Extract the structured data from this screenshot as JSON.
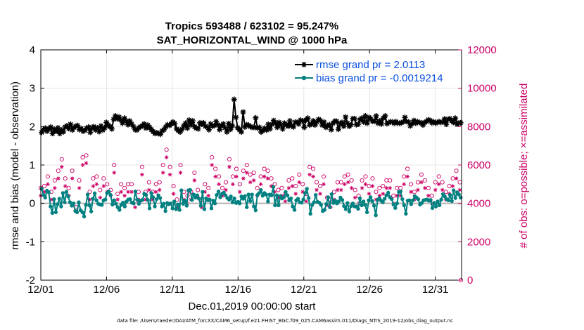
{
  "chart_data": {
    "type": "line",
    "title": "Tropics 593488 / 623102 = 95.247%",
    "subtitle": "SAT_HORIZONTAL_WIND @ 1000 hPa",
    "xlabel": "Dec.01,2019 00:00:00 start",
    "ylabel": "rmse and bias (model - observation)",
    "ylabel_right": "# of obs: o=possible; ×=assimilated",
    "footnote": "data file: /Users/raeder/DAI/ATM_forcXX/CAM6_setup/f.e21.FHIST_BGC.f09_025.CAM6assim.011/Diags_NTrS_2019-12/obs_diag_output.nc",
    "x_ticks": [
      "12/01",
      "12/06",
      "12/11",
      "12/16",
      "12/21",
      "12/26",
      "12/31"
    ],
    "y_ticks": [
      "-2",
      "-1",
      "0",
      "1",
      "2",
      "3",
      "4"
    ],
    "y2_ticks": [
      "0",
      "2000",
      "4000",
      "6000",
      "8000",
      "10000",
      "12000"
    ],
    "ylim": [
      -2,
      4
    ],
    "y2lim": [
      0,
      12000
    ],
    "xlim": [
      0,
      32
    ],
    "grid": true,
    "legend_position": "top-right",
    "series": [
      {
        "name": "rmse grand pr = 2.0113",
        "color": "#000000",
        "marker": "asterisk",
        "values": [
          1.85,
          1.92,
          1.96,
          1.88,
          1.94,
          1.99,
          1.82,
          1.93,
          1.88,
          1.97,
          1.82,
          1.91,
          1.86,
          1.99,
          2.02,
          1.95,
          2.06,
          1.91,
          1.98,
          2.01,
          2.03,
          1.92,
          1.95,
          1.88,
          1.9,
          1.96,
          1.99,
          1.85,
          1.96,
          2.0,
          1.91,
          1.97,
          1.87,
          2.02,
          1.91,
          1.97,
          2.11,
          2.04,
          2.0,
          1.94,
          2.19,
          2.28,
          2.2,
          2.25,
          2.17,
          2.09,
          2.22,
          2.14,
          2.05,
          2.15,
          2.07,
          2.0,
          1.92,
          1.91,
          1.97,
          2.0,
          2.02,
          2.07,
          1.96,
          2.04,
          1.98,
          1.92,
          1.87,
          1.82,
          1.84,
          1.82,
          1.8,
          1.89,
          1.92,
          1.99,
          2.05,
          2.03,
          2.07,
          2.12,
          2.08,
          1.94,
          1.9,
          1.86,
          1.93,
          2.02,
          2.09,
          1.96,
          2.17,
          2.04,
          2.15,
          2.0,
          1.96,
          1.94,
          2.1,
          2.06,
          2.1,
          2.01,
          1.99,
          1.92,
          2.07,
          2.01,
          2.03,
          2.13,
          2.05,
          1.92,
          2.02,
          2.07,
          1.97,
          1.86,
          2.08,
          1.93,
          2.02,
          2.71,
          2.24,
          1.97,
          1.92,
          1.86,
          2.38,
          1.99,
          2.05,
          2.04,
          2.0,
          1.98,
          1.98,
          2.23,
          1.96,
          1.98,
          1.86,
          1.9,
          1.96,
          1.91,
          2.06,
          1.94,
          2.06,
          2.16,
          2.09,
          1.98,
          2.11,
          2.04,
          1.94,
          2.09,
          2.05,
          2.01,
          2.15,
          2.03,
          1.99,
          2.12,
          2.11,
          2.07,
          2.17,
          2.15,
          1.98,
          2.17,
          2.22,
          2.04,
          2.07,
          2.15,
          2.04,
          2.12,
          2.19,
          2.16,
          2.04,
          2.12,
          1.98,
          2.03,
          2.05,
          1.92,
          2.09,
          2.14,
          2.14,
          1.93,
          2.07,
          2.11,
          2.01,
          2.25,
          2.09,
          2.01,
          2.05,
          2.21,
          2.21,
          2.05,
          2.06,
          2.18,
          2.22,
          2.12,
          2.28,
          2.09,
          2.24,
          2.2,
          2.14,
          2.14,
          2.28,
          2.09,
          2.15,
          2.07,
          2.22,
          2.28,
          2.08,
          2.1,
          2.13,
          2.12,
          2.09,
          2.13,
          2.09,
          2.09,
          2.1,
          2.12,
          2.24,
          2.13,
          2.12,
          2.02,
          2.08,
          2.16,
          2.09,
          2.13,
          2.11,
          2.1,
          2.04,
          2.11,
          2.13,
          2.18,
          2.16,
          2.1,
          2.13,
          2.09,
          2.11,
          2.13,
          2.11,
          2.12,
          2.2,
          2.06,
          2.19,
          2.21,
          2.15,
          2.11,
          2.22,
          2.06,
          2.1,
          2.1
        ]
      },
      {
        "name": "bias grand pr = -0.0019214",
        "color": "#008080",
        "marker": "dot",
        "values": [
          0.38,
          0.22,
          0.15,
          0.33,
          0.29,
          -0.08,
          -0.25,
          0.11,
          -0.23,
          -0.02,
          0.12,
          -0.08,
          0.27,
          0.03,
          0.3,
          0.18,
          0.03,
          -0.06,
          0.0,
          -0.2,
          -0.23,
          0.03,
          -0.18,
          -0.23,
          -0.34,
          -0.04,
          0.23,
          -0.05,
          -0.21,
          0.12,
          0.26,
          0.08,
          -0.01,
          -0.03,
          -0.04,
          0.08,
          0.1,
          0.27,
          0.31,
          0.22,
          -0.03,
          0.08,
          -0.01,
          -0.1,
          -0.17,
          -0.04,
          0.02,
          -0.08,
          0.05,
          0.1,
          0.11,
          0.02,
          0.0,
          0.31,
          0.1,
          -0.01,
          0.07,
          0.09,
          0.25,
          0.22,
          0.09,
          -0.13,
          0.27,
          0.16,
          -0.08,
          0.11,
          0.21,
          0.14,
          -0.08,
          -0.01,
          -0.2,
          0.01,
          -0.02,
          0.0,
          -0.13,
          0.05,
          -0.15,
          -0.03,
          -0.17,
          0.34,
          -0.01,
          0.07,
          -0.06,
          0.34,
          0.35,
          0.09,
          0.23,
          0.15,
          0.21,
          0.12,
          -0.06,
          0.3,
          -0.15,
          0.13,
          0.08,
          0.1,
          -0.13,
          0.07,
          0.0,
          0.22,
          0.31,
          0.16,
          0.25,
          0.28,
          0.21,
          0.14,
          0.1,
          0.18,
          0.03,
          0.13,
          0.01,
          0.04,
          0.0,
          0.18,
          0.12,
          0.19,
          -0.1,
          0.23,
          0.06,
          0.23,
          -0.08,
          -0.18,
          0.22,
          0.27,
          0.35,
          0.2,
          0.27,
          0.23,
          0.05,
          0.23,
          0.21,
          0.43,
          -0.05,
          0.21,
          -0.05,
          0.19,
          0.13,
          0.16,
          0.3,
          0.21,
          0.08,
          0.13,
          -0.08,
          -0.17,
          0.08,
          0.12,
          0.03,
          0.02,
          0.1,
          0.27,
          0.38,
          0.14,
          -0.27,
          -0.04,
          0.03,
          0.22,
          0.04,
          0.02,
          -0.04,
          -0.2,
          -0.17,
          -0.02,
          0.16,
          -0.1,
          0.24,
          0.01,
          0.07,
          0.0,
          0.05,
          0.15,
          0.09,
          -0.07,
          -0.15,
          0.01,
          -0.21,
          -0.07,
          0.0,
          -0.08,
          -0.08,
          -0.14,
          0.13,
          -0.05,
          0.05,
          -0.04,
          -0.23,
          0.08,
          0.16,
          0.06,
          -0.06,
          -0.31,
          0.09,
          0.13,
          0.07,
          0.03,
          0.12,
          0.21,
          0.28,
          0.16,
          0.11,
          -0.03,
          -0.12,
          0.0,
          0.3,
          0.31,
          0.11,
          -0.05,
          -0.27,
          0.07,
          0.08,
          -0.02,
          0.08,
          0.19,
          0.15,
          0.11,
          -0.03,
          0.01,
          0.08,
          0.09,
          0.1,
          0.07,
          0.09,
          -0.12,
          0.01,
          -0.08,
          0.05,
          -0.05,
          0.1,
          0.24,
          0.18,
          0.11,
          0.08,
          0.22,
          0.06,
          0.34,
          0.14,
          0.29,
          0.23,
          0.15
        ]
      }
    ],
    "obs_possible": [
      4800,
      5500,
      4900,
      5900,
      5400,
      6100,
      4600,
      5000,
      5200,
      4700,
      5700,
      4900,
      6300,
      6000,
      5300,
      4200,
      4800,
      5200,
      5700,
      4200,
      3800,
      4500,
      5200,
      5900,
      6400,
      6100,
      6500,
      6500,
      4600,
      5000,
      5300,
      5300,
      5400,
      6200,
      4700,
      5700,
      5300,
      5100,
      5000,
      3900,
      4700,
      5500,
      6000,
      5800,
      4500,
      4500,
      5000,
      5100,
      4800,
      4600,
      5000,
      5500,
      5000,
      4000,
      4100,
      4100,
      4600,
      5300,
      5900,
      5400,
      4600,
      4300,
      5100,
      5200,
      4600,
      4100,
      5000,
      5300,
      5100,
      5700,
      6000,
      6300,
      6800,
      6100,
      5900,
      6600,
      4900,
      4800,
      4200,
      5800,
      6000,
      6500,
      4600,
      4300,
      4400,
      4400,
      4600,
      4200,
      5600,
      5500,
      4700,
      6000,
      4200,
      3800,
      5000,
      4200,
      4800,
      6000,
      6400,
      6100,
      5800,
      5600,
      5400,
      5800,
      4800,
      4500,
      5100,
      5500,
      6300,
      5400,
      5400,
      5500,
      5800,
      5700,
      5000,
      5200,
      5700,
      5900,
      6000,
      6100,
      5500,
      5700,
      5600,
      4600,
      4800,
      5700,
      5400,
      6000,
      5800,
      6100,
      5700,
      5200,
      5300,
      4700,
      5000,
      4200,
      4700,
      4800,
      4800,
      5100,
      4500,
      4900,
      5200,
      5300,
      5300,
      5400,
      4900,
      5100,
      5500,
      5100,
      5000,
      4400,
      4500,
      4300,
      5900,
      6100,
      5800,
      5700,
      5100,
      6500,
      4900,
      5200,
      5400,
      5000,
      4300,
      4400,
      4200,
      4400,
      4600,
      4700,
      5100,
      5300,
      5100,
      4600,
      5400,
      5400,
      5500,
      5000,
      5200,
      4300,
      4700,
      3900,
      4400,
      4900,
      5200,
      5300,
      5400,
      5600,
      4900,
      5100,
      5300,
      4700,
      4600,
      4500,
      4800,
      5100,
      4900,
      4700,
      5200,
      5100,
      5200,
      4600,
      4400,
      4200,
      4800,
      5000,
      4800,
      4500,
      5400,
      5600,
      5800,
      5500,
      5000,
      4900,
      4600,
      4600,
      5100,
      5300,
      5500,
      5000,
      5200,
      5000,
      4800,
      4200,
      4400,
      4600,
      5100,
      5400,
      5400,
      5200,
      5100,
      5000,
      4600,
      4500,
      4900,
      4600,
      5300,
      5500,
      5700,
      5600,
      5100,
      4400
    ],
    "obs_assimilated": [
      4400,
      4900,
      4600,
      5500,
      5000,
      5800,
      4200,
      4600,
      4800,
      4300,
      5300,
      4500,
      5900,
      5600,
      4900,
      3700,
      4400,
      4800,
      5300,
      3900,
      3600,
      4200,
      4800,
      5500,
      6000,
      5700,
      6100,
      6100,
      4200,
      4600,
      4900,
      4900,
      5000,
      5800,
      4300,
      5300,
      4900,
      4700,
      4600,
      3500,
      4400,
      5100,
      5600,
      5400,
      4200,
      4100,
      4600,
      4700,
      4400,
      4200,
      4600,
      5100,
      4600,
      3700,
      3800,
      3800,
      4200,
      4900,
      5500,
      5000,
      4200,
      3900,
      4700,
      4800,
      4200,
      3700,
      4600,
      4900,
      4700,
      5300,
      5600,
      5900,
      6400,
      5700,
      5500,
      6200,
      4500,
      4400,
      3800,
      5400,
      5600,
      6100,
      4200,
      3900,
      4000,
      4000,
      4200,
      3800,
      5200,
      5100,
      4300,
      5600,
      3800,
      3500,
      4600,
      3800,
      4400,
      5600,
      6000,
      5700,
      5400,
      5200,
      5000,
      5400,
      4400,
      4100,
      4700,
      5100,
      5900,
      5000,
      5000,
      5100,
      5400,
      5300,
      4600,
      4800,
      5300,
      5500,
      5600,
      5700,
      5100,
      5300,
      5200,
      4200,
      4400,
      5300,
      5000,
      5600,
      5400,
      5700,
      5300,
      4800,
      4900,
      4300,
      4600,
      3800,
      4300,
      4400,
      4400,
      4700,
      4100,
      4500,
      4800,
      4900,
      4900,
      5000,
      4500,
      4700,
      5100,
      4700,
      4600,
      4000,
      4100,
      3900,
      5500,
      5700,
      5400,
      5300,
      4700,
      6100,
      4500,
      4800,
      5000,
      4600,
      3900,
      4000,
      3800,
      4000,
      4200,
      4300,
      4700,
      4900,
      4700,
      4200,
      5000,
      5000,
      5100,
      4600,
      4800,
      3900,
      4300,
      3600,
      4000,
      4500,
      4800,
      4900,
      5000,
      5200,
      4500,
      4700,
      4900,
      4300,
      4200,
      4100,
      4400,
      4700,
      4500,
      4300,
      4800,
      4700,
      4800,
      4200,
      4000,
      3800,
      4400,
      4600,
      4400,
      4100,
      5000,
      5200,
      5400,
      5100,
      4600,
      4500,
      4200,
      4200,
      4700,
      4900,
      5100,
      4600,
      4800,
      4600,
      4400,
      3800,
      4000,
      4200,
      4700,
      5000,
      5000,
      4800,
      4700,
      4600,
      4200,
      4100,
      4500,
      4200,
      4900,
      5100,
      5300,
      5200,
      4700,
      4000
    ]
  },
  "colors": {
    "axis_left": "#000000",
    "axis_right": "#cc0066",
    "grid": "#e6e6e6",
    "zero_line": "#b3b3b3",
    "legend_text": "#0b4fe0"
  }
}
